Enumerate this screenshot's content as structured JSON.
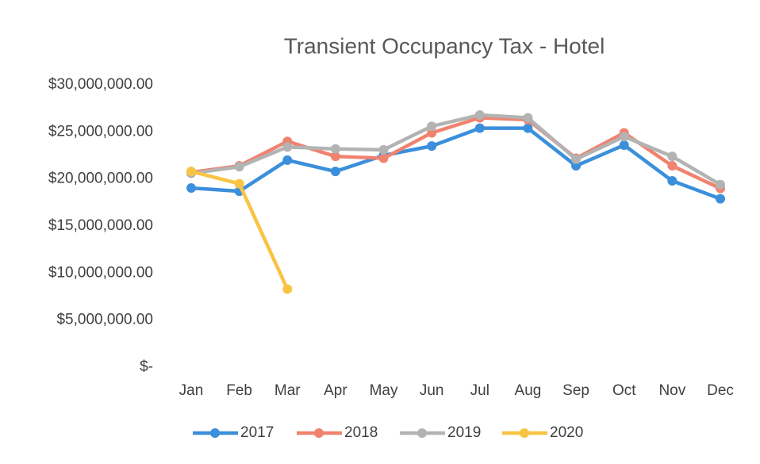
{
  "chart_data": {
    "type": "line",
    "title": "Transient Occupancy Tax - Hotel",
    "categories": [
      "Jan",
      "Feb",
      "Mar",
      "Apr",
      "May",
      "Jun",
      "Jul",
      "Aug",
      "Sep",
      "Oct",
      "Nov",
      "Dec"
    ],
    "series": [
      {
        "name": "2017",
        "color": "#3b8fdb",
        "values": [
          19040000,
          18700000,
          22000000,
          20800000,
          22500000,
          23500000,
          25400000,
          25400000,
          21400000,
          23600000,
          19800000,
          17900000
        ]
      },
      {
        "name": "2018",
        "color": "#f0836f",
        "values": [
          20700000,
          21400000,
          24000000,
          22400000,
          22200000,
          24900000,
          26500000,
          26300000,
          22200000,
          24900000,
          21400000,
          19000000
        ]
      },
      {
        "name": "2019",
        "color": "#b3b3b3",
        "values": [
          20600000,
          21300000,
          23400000,
          23200000,
          23100000,
          25600000,
          26800000,
          26500000,
          22100000,
          24500000,
          22400000,
          19400000
        ]
      },
      {
        "name": "2020",
        "color": "#f8c443",
        "values": [
          20800000,
          19500000,
          8300000,
          null,
          null,
          null,
          null,
          null,
          null,
          null,
          null,
          null
        ]
      }
    ],
    "ylim": [
      0,
      30000000
    ],
    "yticks": [
      {
        "value": 0,
        "label": "$-"
      },
      {
        "value": 5000000,
        "label": "$5,000,000.00"
      },
      {
        "value": 10000000,
        "label": "$10,000,000.00"
      },
      {
        "value": 15000000,
        "label": "$15,000,000.00"
      },
      {
        "value": 20000000,
        "label": "$20,000,000.00"
      },
      {
        "value": 25000000,
        "label": "$25,000,000.00"
      },
      {
        "value": 30000000,
        "label": "$30,000,000.00"
      }
    ],
    "grid": false,
    "legend": "bottom"
  }
}
